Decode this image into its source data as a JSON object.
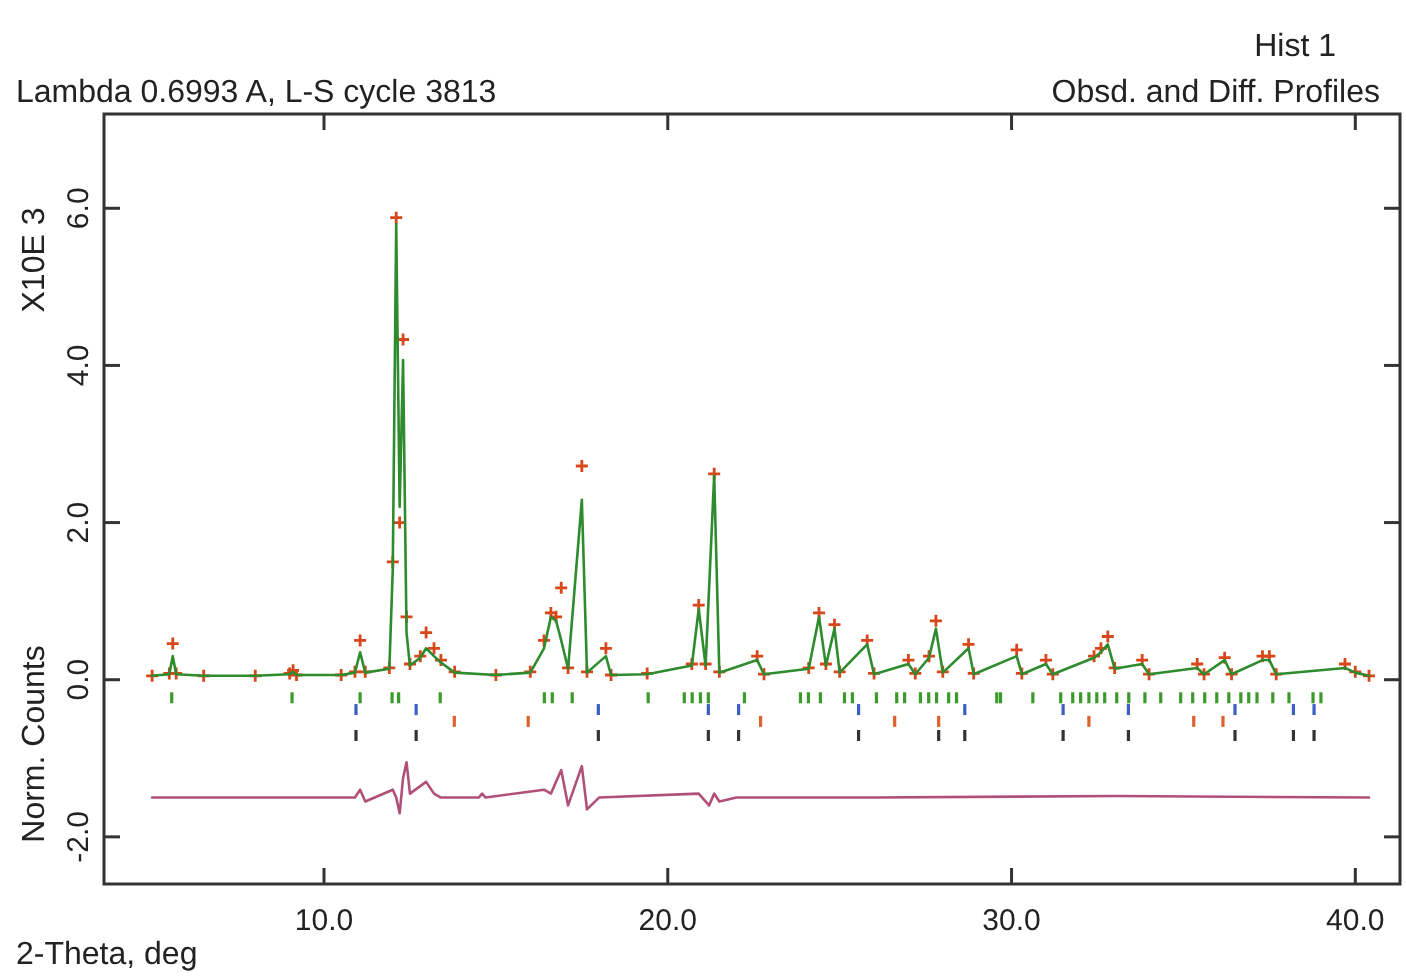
{
  "chart_data": {
    "type": "line",
    "title": "Lambda 0.6993 A, L-S cycle 3813",
    "subtitle": "Obsd. and Diff. Profiles",
    "xlabel": "2-Theta, deg",
    "ylabel": "Norm. Counts",
    "annotations": [
      "Hist 1",
      "X10E 3"
    ],
    "xlim": [
      3.6,
      41.3
    ],
    "ylim": [
      -2.6,
      7.2
    ],
    "xticks": [
      {
        "value": 10,
        "label": "10.0"
      },
      {
        "value": 20,
        "label": "20.0"
      },
      {
        "value": 30,
        "label": "30.0"
      },
      {
        "value": 40,
        "label": "40.0"
      }
    ],
    "yticks": [
      {
        "value": -2,
        "label": "-2.0"
      },
      {
        "value": 0,
        "label": "0.0"
      },
      {
        "value": 2,
        "label": "2.0"
      },
      {
        "value": 4,
        "label": "4.0"
      },
      {
        "value": 6,
        "label": "6.0"
      }
    ],
    "series": [
      {
        "type": "scatter",
        "marker": "cross",
        "color": "#d8461a",
        "x": [
          5.0,
          5.5,
          5.6,
          5.7,
          6.5,
          8.0,
          9.0,
          9.1,
          9.2,
          10.5,
          10.9,
          11.05,
          11.2,
          11.9,
          12.0,
          12.1,
          12.2,
          12.3,
          12.4,
          12.5,
          12.8,
          12.97,
          13.2,
          13.4,
          13.8,
          15.0,
          16.0,
          16.4,
          16.6,
          16.75,
          16.9,
          17.1,
          17.5,
          17.65,
          18.2,
          18.35,
          19.4,
          20.7,
          20.9,
          21.1,
          21.35,
          21.5,
          22.6,
          22.8,
          24.1,
          24.4,
          24.6,
          24.85,
          25.0,
          25.8,
          26.0,
          27.0,
          27.2,
          27.6,
          27.8,
          28.0,
          28.75,
          28.9,
          30.15,
          30.3,
          31.0,
          31.2,
          32.4,
          32.6,
          32.8,
          33.0,
          33.8,
          34.0,
          35.4,
          35.6,
          36.2,
          36.4,
          37.3,
          37.5,
          37.7,
          39.7,
          40.0,
          40.4
        ],
        "values": [
          0.05,
          0.08,
          0.46,
          0.08,
          0.05,
          0.05,
          0.08,
          0.12,
          0.06,
          0.06,
          0.1,
          0.5,
          0.1,
          0.15,
          1.5,
          5.88,
          2.0,
          4.33,
          0.8,
          0.2,
          0.3,
          0.6,
          0.4,
          0.25,
          0.1,
          0.06,
          0.1,
          0.5,
          0.85,
          0.8,
          1.17,
          0.15,
          2.72,
          0.1,
          0.4,
          0.06,
          0.08,
          0.2,
          0.95,
          0.2,
          2.62,
          0.1,
          0.3,
          0.07,
          0.15,
          0.85,
          0.2,
          0.7,
          0.1,
          0.5,
          0.08,
          0.25,
          0.08,
          0.3,
          0.75,
          0.1,
          0.45,
          0.08,
          0.38,
          0.08,
          0.25,
          0.07,
          0.3,
          0.4,
          0.55,
          0.15,
          0.25,
          0.07,
          0.2,
          0.07,
          0.28,
          0.07,
          0.3,
          0.3,
          0.07,
          0.2,
          0.1,
          0.05
        ]
      },
      {
        "type": "line",
        "marker": "none",
        "color": "#2e8b2e",
        "x": [
          5.0,
          5.5,
          5.6,
          5.7,
          6.5,
          8.0,
          9.0,
          9.1,
          9.2,
          10.5,
          10.9,
          11.05,
          11.2,
          11.9,
          12.0,
          12.1,
          12.2,
          12.3,
          12.4,
          12.5,
          12.8,
          12.97,
          13.2,
          13.4,
          13.8,
          15.0,
          16.0,
          16.4,
          16.6,
          16.75,
          16.9,
          17.1,
          17.5,
          17.65,
          18.2,
          18.35,
          19.4,
          20.7,
          20.9,
          21.1,
          21.35,
          21.5,
          22.6,
          22.8,
          24.1,
          24.4,
          24.6,
          24.85,
          25.0,
          25.8,
          26.0,
          27.0,
          27.2,
          27.6,
          27.8,
          28.0,
          28.75,
          28.9,
          30.15,
          30.3,
          31.0,
          31.2,
          32.4,
          32.6,
          32.8,
          33.0,
          33.8,
          34.0,
          35.4,
          35.6,
          36.2,
          36.4,
          37.3,
          37.5,
          37.7,
          39.7,
          40.0,
          40.4
        ],
        "values": [
          0.05,
          0.07,
          0.3,
          0.07,
          0.05,
          0.05,
          0.07,
          0.1,
          0.06,
          0.06,
          0.09,
          0.35,
          0.09,
          0.14,
          1.4,
          5.8,
          2.2,
          4.07,
          0.6,
          0.18,
          0.28,
          0.4,
          0.3,
          0.22,
          0.09,
          0.06,
          0.09,
          0.4,
          0.8,
          0.75,
          0.5,
          0.14,
          2.29,
          0.09,
          0.3,
          0.06,
          0.07,
          0.18,
          0.9,
          0.18,
          2.6,
          0.09,
          0.25,
          0.07,
          0.14,
          0.8,
          0.18,
          0.65,
          0.09,
          0.45,
          0.07,
          0.2,
          0.07,
          0.28,
          0.65,
          0.09,
          0.4,
          0.07,
          0.3,
          0.07,
          0.2,
          0.07,
          0.28,
          0.35,
          0.45,
          0.14,
          0.2,
          0.07,
          0.15,
          0.07,
          0.25,
          0.07,
          0.25,
          0.25,
          0.07,
          0.15,
          0.09,
          0.05
        ]
      },
      {
        "type": "line",
        "marker": "none",
        "color": "#b0507a",
        "x": [
          5.0,
          10.9,
          11.05,
          11.2,
          12.0,
          12.1,
          12.2,
          12.3,
          12.4,
          12.5,
          12.97,
          13.2,
          13.4,
          14.5,
          14.6,
          14.7,
          16.4,
          16.6,
          16.9,
          17.1,
          17.5,
          17.65,
          18.0,
          20.9,
          21.2,
          21.35,
          21.5,
          22.0,
          26.0,
          33.0,
          40.4
        ],
        "values": [
          -1.5,
          -1.5,
          -1.4,
          -1.55,
          -1.4,
          -1.5,
          -1.7,
          -1.25,
          -1.05,
          -1.45,
          -1.3,
          -1.45,
          -1.5,
          -1.5,
          -1.45,
          -1.5,
          -1.4,
          -1.45,
          -1.15,
          -1.6,
          -1.1,
          -1.65,
          -1.5,
          -1.45,
          -1.6,
          -1.45,
          -1.55,
          -1.5,
          -1.5,
          -1.48,
          -1.5
        ]
      },
      {
        "type": "bar",
        "base": [
          -0.3,
          -0.3,
          -0.3,
          -0.3,
          -0.3,
          -0.3,
          -0.3,
          -0.3,
          -0.3,
          -0.3,
          -0.3,
          -0.3,
          -0.3,
          -0.3,
          -0.3,
          -0.3,
          -0.3,
          -0.3,
          -0.3,
          -0.3,
          -0.3,
          -0.3,
          -0.3,
          -0.3,
          -0.3,
          -0.3,
          -0.3,
          -0.3,
          -0.3,
          -0.3,
          -0.3,
          -0.3,
          -0.3,
          -0.3,
          -0.3,
          -0.3,
          -0.3,
          -0.3,
          -0.3,
          -0.3,
          -0.3,
          -0.3,
          -0.3,
          -0.3,
          -0.3,
          -0.3,
          -0.3,
          -0.3,
          -0.3,
          -0.3,
          -0.3,
          -0.3,
          -0.3
        ],
        "color": "#3a9a2a",
        "x": [
          5.57,
          9.07,
          11.05,
          11.98,
          12.17,
          13.38,
          16.41,
          16.64,
          17.22,
          19.43,
          20.48,
          20.71,
          20.95,
          21.18,
          22.23,
          23.86,
          24.09,
          24.44,
          25.14,
          25.37,
          26.07,
          26.66,
          26.89,
          27.35,
          27.59,
          27.82,
          28.17,
          28.4,
          29.57,
          29.68,
          30.62,
          31.43,
          31.78,
          32.01,
          32.25,
          32.48,
          32.71,
          33.06,
          33.41,
          33.88,
          34.34,
          34.92,
          35.27,
          35.62,
          35.97,
          36.32,
          36.67,
          36.9,
          37.14,
          37.6,
          38.07,
          38.77,
          39.0
        ],
        "values": [
          0.14,
          0.14,
          0.14,
          0.14,
          0.14,
          0.14,
          0.14,
          0.14,
          0.14,
          0.14,
          0.14,
          0.14,
          0.14,
          0.14,
          0.14,
          0.14,
          0.14,
          0.14,
          0.14,
          0.14,
          0.14,
          0.14,
          0.14,
          0.14,
          0.14,
          0.14,
          0.14,
          0.14,
          0.14,
          0.14,
          0.14,
          0.14,
          0.14,
          0.14,
          0.14,
          0.14,
          0.14,
          0.14,
          0.14,
          0.14,
          0.14,
          0.14,
          0.14,
          0.14,
          0.14,
          0.14,
          0.14,
          0.14,
          0.14,
          0.14,
          0.14,
          0.14,
          0.14
        ]
      },
      {
        "type": "bar",
        "base": [
          -0.45,
          -0.45,
          -0.45,
          -0.45,
          -0.45,
          -0.45,
          -0.45,
          -0.45,
          -0.45,
          -0.45,
          -0.45,
          -0.45
        ],
        "color": "#3b5fc4",
        "x": [
          10.93,
          12.68,
          17.98,
          21.18,
          22.06,
          25.55,
          28.64,
          31.5,
          33.4,
          36.5,
          38.2,
          38.8
        ],
        "values": [
          0.14,
          0.14,
          0.14,
          0.14,
          0.14,
          0.14,
          0.14,
          0.14,
          0.14,
          0.14,
          0.14,
          0.14
        ]
      },
      {
        "type": "bar",
        "base": [
          -0.6,
          -0.6,
          -0.6,
          -0.6,
          -0.6,
          -0.6,
          -0.6,
          -0.6
        ],
        "color": "#e0602a",
        "x": [
          13.79,
          15.94,
          22.7,
          26.6,
          27.88,
          32.25,
          35.3,
          36.15
        ],
        "values": [
          0.14,
          0.14,
          0.14,
          0.14,
          0.14,
          0.14,
          0.14,
          0.14
        ]
      },
      {
        "type": "bar",
        "base": [
          -0.78,
          -0.78,
          -0.78,
          -0.78,
          -0.78,
          -0.78,
          -0.78,
          -0.78,
          -0.78,
          -0.78,
          -0.78,
          -0.78,
          -0.78
        ],
        "color": "#333333",
        "x": [
          10.93,
          12.68,
          17.98,
          21.18,
          22.06,
          25.55,
          27.88,
          28.64,
          31.5,
          33.4,
          36.5,
          38.2,
          38.8
        ],
        "values": [
          0.14,
          0.14,
          0.14,
          0.14,
          0.14,
          0.14,
          0.14,
          0.14,
          0.14,
          0.14,
          0.14,
          0.14,
          0.14
        ]
      }
    ]
  }
}
